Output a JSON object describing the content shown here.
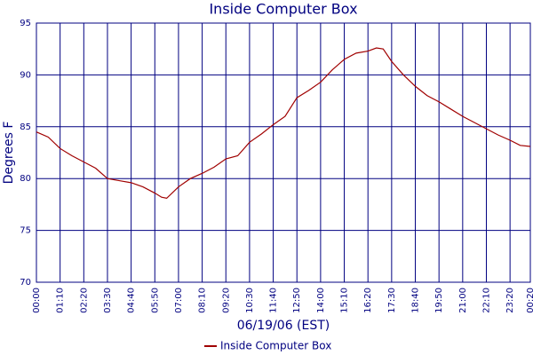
{
  "chart_data": {
    "type": "line",
    "title": "Inside Computer Box",
    "x_label": "06/19/06 (EST)",
    "y_label": "Degrees F",
    "x": [
      0,
      35,
      70,
      105,
      140,
      175,
      210,
      245,
      280,
      315,
      350,
      370,
      385,
      420,
      455,
      490,
      525,
      560,
      595,
      630,
      665,
      700,
      735,
      770,
      805,
      840,
      875,
      910,
      945,
      980,
      1005,
      1025,
      1050,
      1085,
      1120,
      1155,
      1190,
      1225,
      1260,
      1295,
      1330,
      1365,
      1400,
      1430,
      1460
    ],
    "series": [
      {
        "name": "Inside Computer Box",
        "color": "#a00000",
        "values": [
          84.5,
          84.0,
          82.9,
          82.2,
          81.6,
          81.0,
          80.0,
          79.8,
          79.6,
          79.2,
          78.6,
          78.2,
          78.1,
          79.2,
          80.0,
          80.5,
          81.1,
          81.9,
          82.2,
          83.5,
          84.3,
          85.2,
          86.0,
          87.8,
          88.5,
          89.3,
          90.5,
          91.5,
          92.1,
          92.3,
          92.6,
          92.5,
          91.3,
          90.0,
          88.9,
          88.0,
          87.4,
          86.7,
          86.0,
          85.4,
          84.8,
          84.2,
          83.7,
          83.2,
          83.1
        ]
      }
    ],
    "xlim": [
      0,
      1460
    ],
    "xticks": [
      {
        "value": 0,
        "label": "00:00"
      },
      {
        "value": 70,
        "label": "01:10"
      },
      {
        "value": 140,
        "label": "02:20"
      },
      {
        "value": 210,
        "label": "03:30"
      },
      {
        "value": 280,
        "label": "04:40"
      },
      {
        "value": 350,
        "label": "05:50"
      },
      {
        "value": 420,
        "label": "07:00"
      },
      {
        "value": 490,
        "label": "08:10"
      },
      {
        "value": 560,
        "label": "09:20"
      },
      {
        "value": 630,
        "label": "10:30"
      },
      {
        "value": 700,
        "label": "11:40"
      },
      {
        "value": 770,
        "label": "12:50"
      },
      {
        "value": 840,
        "label": "14:00"
      },
      {
        "value": 910,
        "label": "15:10"
      },
      {
        "value": 980,
        "label": "16:20"
      },
      {
        "value": 1050,
        "label": "17:30"
      },
      {
        "value": 1120,
        "label": "18:40"
      },
      {
        "value": 1190,
        "label": "19:50"
      },
      {
        "value": 1260,
        "label": "21:00"
      },
      {
        "value": 1330,
        "label": "22:10"
      },
      {
        "value": 1400,
        "label": "23:20"
      },
      {
        "value": 1460,
        "label": "00:20"
      }
    ],
    "ylim": [
      70,
      95
    ],
    "yticks": [
      70,
      75,
      80,
      85,
      90,
      95
    ],
    "grid": true,
    "axis_color": "#000080"
  }
}
